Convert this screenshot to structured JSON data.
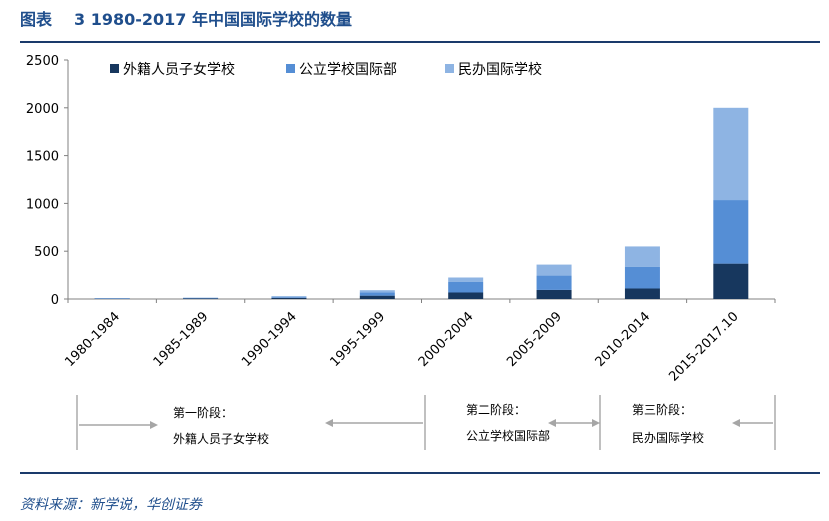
{
  "figure": {
    "label": "图表",
    "number_title": "3 1980-2017 年中国国际学校的数量",
    "source": "资料来源：新学说，华创证券"
  },
  "colors": {
    "brand": "#1f4e8c",
    "axis": "#808080",
    "arrow": "#a6a6a6"
  },
  "chart_data": {
    "type": "bar",
    "stacked": true,
    "title": "",
    "xlabel": "",
    "ylabel": "",
    "categories": [
      "1980-1984",
      "1985-1989",
      "1990-1994",
      "1995-1999",
      "2000-2004",
      "2005-2009",
      "2010-2014",
      "2015-2017.10"
    ],
    "series": [
      {
        "name": "外籍人员子女学校",
        "color": "#17375e",
        "values": [
          6,
          10,
          12,
          35,
          68,
          95,
          110,
          370
        ]
      },
      {
        "name": "公立学校国际部",
        "color": "#558ed5",
        "values": [
          2,
          2,
          8,
          35,
          110,
          150,
          225,
          665
        ]
      },
      {
        "name": "民办国际学校",
        "color": "#8eb4e3",
        "values": [
          1,
          1,
          10,
          22,
          47,
          115,
          215,
          965
        ]
      }
    ],
    "ylim": [
      0,
      2500
    ],
    "yticks": [
      0,
      500,
      1000,
      1500,
      2000,
      2500
    ],
    "grid": false,
    "legend_position": "top"
  },
  "stages": [
    {
      "title": "第一阶段：",
      "desc": "外籍人员子女学校"
    },
    {
      "title": "第二阶段：",
      "desc": "公立学校国际部"
    },
    {
      "title": "第三阶段：",
      "desc": "民办国际学校"
    }
  ]
}
